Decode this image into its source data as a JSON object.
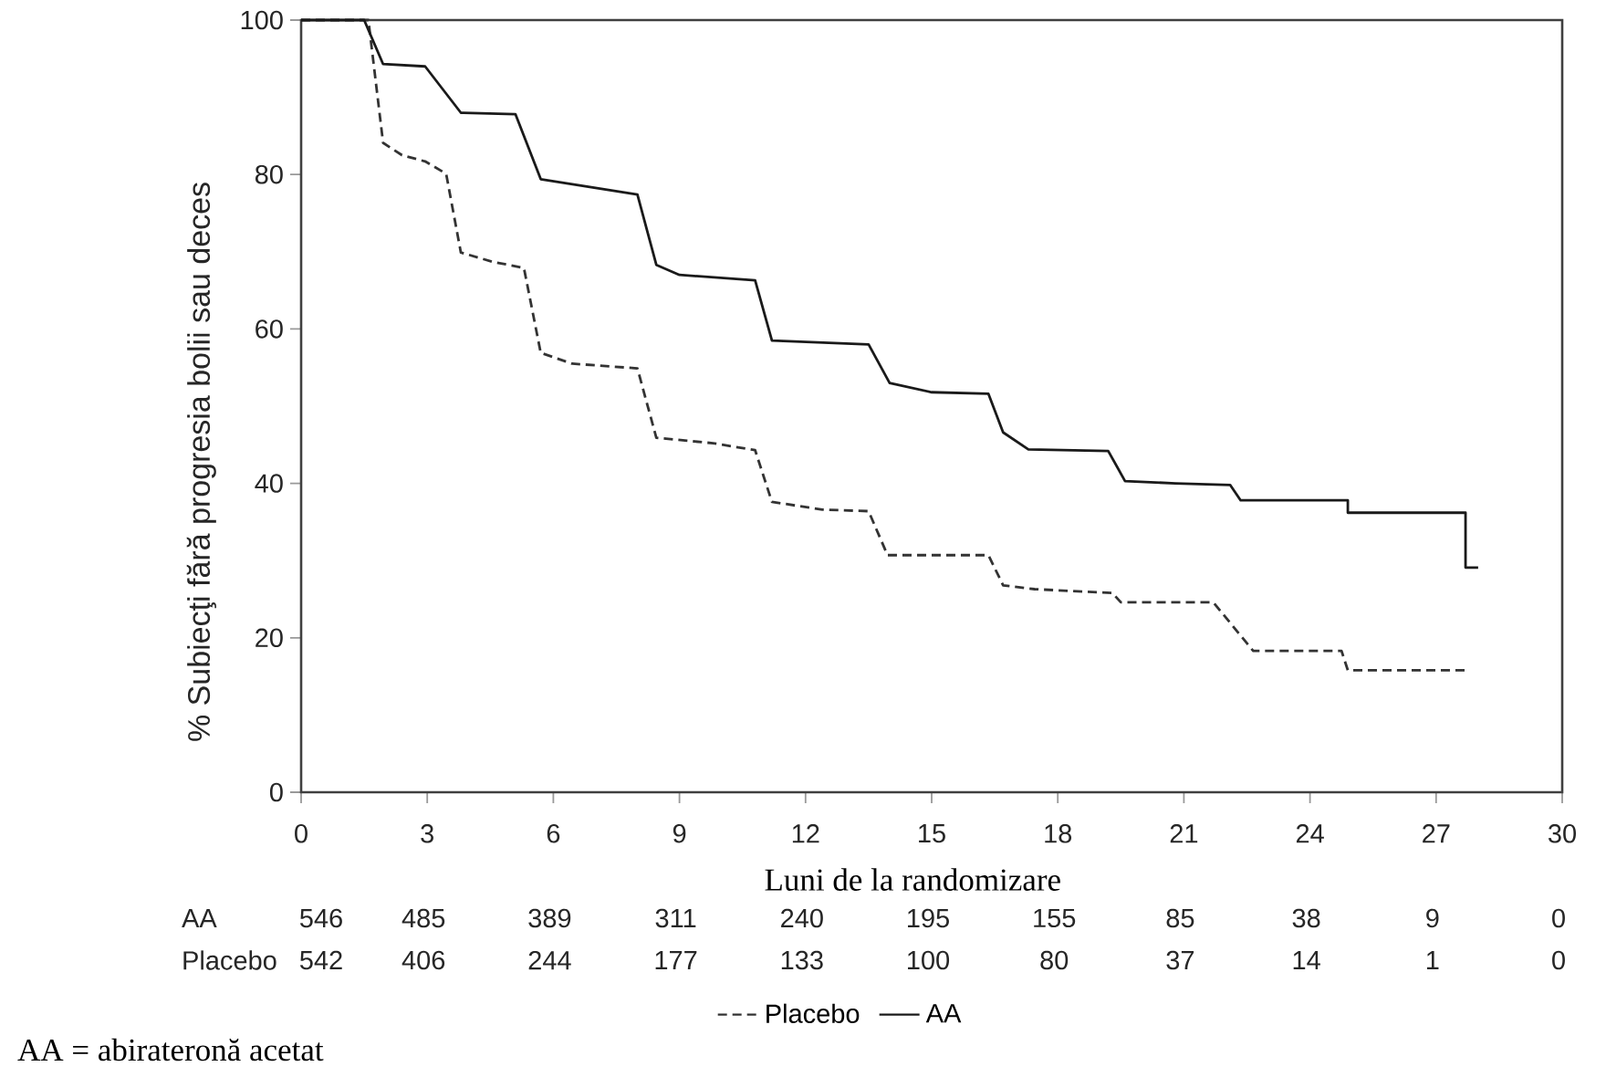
{
  "chart_data": {
    "type": "line",
    "xlabel": "Luni de la randomizare",
    "ylabel": "% Subiecţi fără progresia bolii sau deces",
    "xlim": [
      0,
      30
    ],
    "xticks": [
      0,
      3,
      6,
      9,
      12,
      15,
      18,
      21,
      24,
      27,
      30
    ],
    "ylim": [
      0,
      100
    ],
    "yticks": [
      0,
      20,
      40,
      60,
      80,
      100
    ],
    "legend": "bottom",
    "marker": "none",
    "series": [
      {
        "name": "Placebo",
        "color": "#333333",
        "line_style": "dashed",
        "x": [
          0,
          1.6,
          1.95,
          2.4,
          2.95,
          3.45,
          3.8,
          4.55,
          5.3,
          5.7,
          6.45,
          8.0,
          8.45,
          9.8,
          10.8,
          11.2,
          12.4,
          13.5,
          13.95,
          16.35,
          16.7,
          17.45,
          19.3,
          19.5,
          21.7,
          22.65,
          24.75,
          24.9,
          27.8
        ],
        "values": [
          100,
          100,
          84.1,
          82.5,
          81.7,
          80.1,
          69.9,
          68.7,
          67.9,
          56.9,
          55.5,
          54.9,
          45.9,
          45.2,
          44.3,
          37.6,
          36.6,
          36.4,
          30.7,
          30.7,
          26.8,
          26.3,
          25.8,
          24.6,
          24.6,
          18.3,
          18.3,
          15.8,
          15.8
        ]
      },
      {
        "name": "AA",
        "color": "#1a1a1a",
        "line_style": "solid",
        "x": [
          0,
          1.5,
          1.95,
          2.95,
          3.8,
          5.1,
          5.7,
          8.0,
          8.45,
          9.0,
          10.8,
          11.2,
          13.5,
          14.0,
          15.0,
          16.35,
          16.7,
          17.3,
          19.2,
          19.6,
          20.8,
          22.1,
          22.35,
          24.9,
          24.9,
          27.7,
          27.7,
          28.0
        ],
        "values": [
          100,
          100,
          94.3,
          94,
          88,
          87.8,
          79.4,
          77.4,
          68.3,
          67,
          66.3,
          58.5,
          58,
          53,
          51.8,
          51.6,
          46.6,
          44.4,
          44.2,
          40.3,
          40.0,
          39.8,
          37.8,
          37.8,
          36.2,
          36.2,
          29.1,
          29.1
        ]
      }
    ],
    "annotations": [
      "AA",
      "546",
      "485",
      "389",
      "311",
      "240",
      "195",
      "155",
      "85",
      "38",
      "9",
      "0",
      "Placebo",
      "542",
      "406",
      "244",
      "177",
      "133",
      "100",
      "80",
      "37",
      "14",
      "1",
      "0",
      "AA = abirateronă acetat"
    ]
  }
}
